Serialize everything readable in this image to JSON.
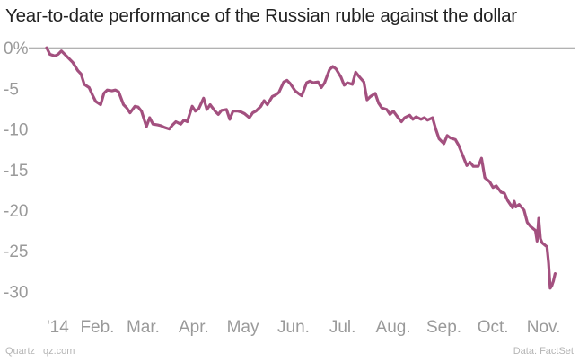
{
  "title": "Year-to-date performance of the Russian ruble against the dollar",
  "footer": {
    "credit": "Quartz | qz.com",
    "source": "Data: FactSet"
  },
  "colors": {
    "line": "#a3507f",
    "zero_line": "#999999",
    "tick_text": "#9a9a9a",
    "title_text": "#222222"
  },
  "chart_data": {
    "type": "line",
    "title": "Year-to-date performance of the Russian ruble against the dollar",
    "xlabel": "",
    "ylabel": "",
    "y_ticks": [
      0,
      -5,
      -10,
      -15,
      -20,
      -25,
      -30
    ],
    "y_tick_labels": [
      "0%",
      "-5",
      "-10",
      "-15",
      "-20",
      "-25",
      "-30"
    ],
    "ylim": [
      -31.5,
      0.8
    ],
    "x_ticks": [
      "2014-01-01",
      "2014-02-01",
      "2014-03-01",
      "2014-04-01",
      "2014-05-01",
      "2014-06-01",
      "2014-07-01",
      "2014-08-01",
      "2014-09-01",
      "2014-10-01",
      "2014-11-01"
    ],
    "x_tick_labels": [
      "'14",
      "Feb.",
      "Mar.",
      "Apr.",
      "May",
      "Jun.",
      "Jul.",
      "Aug.",
      "Sep.",
      "Oct.",
      "Nov."
    ],
    "xlim": [
      "2014-01-01",
      "2014-11-10"
    ],
    "grid": false,
    "legend": "none",
    "series": [
      {
        "points": [
          [
            "2014-01-01",
            0.0
          ],
          [
            "2014-01-03",
            -0.8
          ],
          [
            "2014-01-06",
            -1.0
          ],
          [
            "2014-01-08",
            -0.8
          ],
          [
            "2014-01-10",
            -0.4
          ],
          [
            "2014-01-13",
            -1.0
          ],
          [
            "2014-01-15",
            -1.4
          ],
          [
            "2014-01-17",
            -1.8
          ],
          [
            "2014-01-20",
            -2.8
          ],
          [
            "2014-01-22",
            -3.2
          ],
          [
            "2014-01-24",
            -4.5
          ],
          [
            "2014-01-27",
            -4.9
          ],
          [
            "2014-01-29",
            -5.8
          ],
          [
            "2014-01-31",
            -6.6
          ],
          [
            "2014-02-03",
            -7.0
          ],
          [
            "2014-02-05",
            -5.6
          ],
          [
            "2014-02-07",
            -5.2
          ],
          [
            "2014-02-10",
            -5.3
          ],
          [
            "2014-02-12",
            -5.2
          ],
          [
            "2014-02-14",
            -5.4
          ],
          [
            "2014-02-17",
            -7.0
          ],
          [
            "2014-02-19",
            -7.4
          ],
          [
            "2014-02-21",
            -8.0
          ],
          [
            "2014-02-24",
            -7.2
          ],
          [
            "2014-02-26",
            -7.3
          ],
          [
            "2014-02-28",
            -7.8
          ],
          [
            "2014-03-03",
            -9.7
          ],
          [
            "2014-03-05",
            -8.6
          ],
          [
            "2014-03-07",
            -9.4
          ],
          [
            "2014-03-10",
            -9.5
          ],
          [
            "2014-03-12",
            -9.6
          ],
          [
            "2014-03-14",
            -9.8
          ],
          [
            "2014-03-17",
            -10.0
          ],
          [
            "2014-03-19",
            -9.5
          ],
          [
            "2014-03-21",
            -9.1
          ],
          [
            "2014-03-24",
            -9.4
          ],
          [
            "2014-03-26",
            -8.9
          ],
          [
            "2014-03-28",
            -9.1
          ],
          [
            "2014-03-31",
            -7.2
          ],
          [
            "2014-04-02",
            -7.8
          ],
          [
            "2014-04-04",
            -7.5
          ],
          [
            "2014-04-07",
            -6.2
          ],
          [
            "2014-04-09",
            -7.6
          ],
          [
            "2014-04-11",
            -7.0
          ],
          [
            "2014-04-14",
            -7.8
          ],
          [
            "2014-04-16",
            -8.2
          ],
          [
            "2014-04-18",
            -7.7
          ],
          [
            "2014-04-21",
            -7.6
          ],
          [
            "2014-04-23",
            -8.8
          ],
          [
            "2014-04-25",
            -7.8
          ],
          [
            "2014-04-28",
            -7.8
          ],
          [
            "2014-04-30",
            -7.9
          ],
          [
            "2014-05-02",
            -8.1
          ],
          [
            "2014-05-05",
            -8.6
          ],
          [
            "2014-05-07",
            -8.0
          ],
          [
            "2014-05-09",
            -7.8
          ],
          [
            "2014-05-12",
            -7.2
          ],
          [
            "2014-05-14",
            -6.5
          ],
          [
            "2014-05-16",
            -7.0
          ],
          [
            "2014-05-19",
            -6.0
          ],
          [
            "2014-05-21",
            -5.8
          ],
          [
            "2014-05-23",
            -5.5
          ],
          [
            "2014-05-26",
            -4.2
          ],
          [
            "2014-05-28",
            -4.0
          ],
          [
            "2014-05-30",
            -4.4
          ],
          [
            "2014-06-02",
            -5.3
          ],
          [
            "2014-06-04",
            -5.6
          ],
          [
            "2014-06-06",
            -5.9
          ],
          [
            "2014-06-09",
            -4.3
          ],
          [
            "2014-06-11",
            -4.1
          ],
          [
            "2014-06-13",
            -4.3
          ],
          [
            "2014-06-16",
            -4.2
          ],
          [
            "2014-06-18",
            -4.9
          ],
          [
            "2014-06-20",
            -4.3
          ],
          [
            "2014-06-23",
            -2.7
          ],
          [
            "2014-06-25",
            -2.3
          ],
          [
            "2014-06-27",
            -2.6
          ],
          [
            "2014-06-30",
            -3.6
          ],
          [
            "2014-07-02",
            -4.6
          ],
          [
            "2014-07-04",
            -4.3
          ],
          [
            "2014-07-07",
            -4.5
          ],
          [
            "2014-07-09",
            -3.0
          ],
          [
            "2014-07-11",
            -3.5
          ],
          [
            "2014-07-14",
            -4.2
          ],
          [
            "2014-07-16",
            -6.4
          ],
          [
            "2014-07-18",
            -6.0
          ],
          [
            "2014-07-21",
            -5.6
          ],
          [
            "2014-07-23",
            -6.8
          ],
          [
            "2014-07-25",
            -7.4
          ],
          [
            "2014-07-28",
            -7.6
          ],
          [
            "2014-07-30",
            -8.2
          ],
          [
            "2014-08-01",
            -7.8
          ],
          [
            "2014-08-04",
            -8.6
          ],
          [
            "2014-08-06",
            -9.1
          ],
          [
            "2014-08-08",
            -8.6
          ],
          [
            "2014-08-11",
            -8.3
          ],
          [
            "2014-08-13",
            -8.8
          ],
          [
            "2014-08-15",
            -8.5
          ],
          [
            "2014-08-18",
            -8.8
          ],
          [
            "2014-08-20",
            -8.6
          ],
          [
            "2014-08-22",
            -8.9
          ],
          [
            "2014-08-25",
            -8.6
          ],
          [
            "2014-08-27",
            -10.0
          ],
          [
            "2014-08-29",
            -11.2
          ],
          [
            "2014-09-01",
            -11.8
          ],
          [
            "2014-09-03",
            -10.8
          ],
          [
            "2014-09-05",
            -11.1
          ],
          [
            "2014-09-08",
            -11.3
          ],
          [
            "2014-09-10",
            -12.0
          ],
          [
            "2014-09-12",
            -13.0
          ],
          [
            "2014-09-15",
            -14.5
          ],
          [
            "2014-09-17",
            -14.1
          ],
          [
            "2014-09-19",
            -14.6
          ],
          [
            "2014-09-22",
            -14.6
          ],
          [
            "2014-09-24",
            -13.6
          ],
          [
            "2014-09-26",
            -16.0
          ],
          [
            "2014-09-29",
            -16.5
          ],
          [
            "2014-10-01",
            -17.2
          ],
          [
            "2014-10-03",
            -17.0
          ],
          [
            "2014-10-06",
            -17.8
          ],
          [
            "2014-10-08",
            -17.9
          ],
          [
            "2014-10-10",
            -18.8
          ],
          [
            "2014-10-13",
            -19.7
          ],
          [
            "2014-10-14",
            -18.9
          ],
          [
            "2014-10-15",
            -19.6
          ],
          [
            "2014-10-17",
            -19.3
          ],
          [
            "2014-10-20",
            -20.0
          ],
          [
            "2014-10-22",
            -21.5
          ],
          [
            "2014-10-24",
            -22.0
          ],
          [
            "2014-10-27",
            -22.5
          ],
          [
            "2014-10-28",
            -23.8
          ],
          [
            "2014-10-29",
            -21.0
          ],
          [
            "2014-10-30",
            -23.5
          ],
          [
            "2014-10-31",
            -24.0
          ],
          [
            "2014-11-03",
            -24.5
          ],
          [
            "2014-11-04",
            -26.5
          ],
          [
            "2014-11-05",
            -29.6
          ],
          [
            "2014-11-06",
            -29.3
          ],
          [
            "2014-11-07",
            -28.7
          ],
          [
            "2014-11-08",
            -27.8
          ]
        ]
      }
    ]
  }
}
